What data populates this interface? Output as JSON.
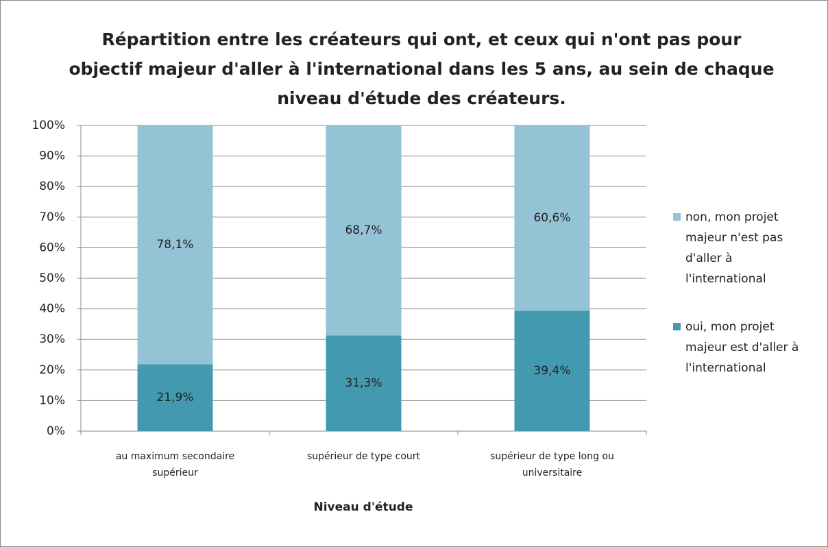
{
  "chart_data": {
    "type": "stacked_bar",
    "title": "Répartition entre les créateurs qui ont, et ceux qui n'ont pas pour objectif majeur d'aller à l'international dans les 5 ans, au sein de chaque niveau d'étude des créateurs.",
    "x_label": "Niveau d'étude",
    "categories": [
      "au maximum secondaire supérieur",
      "supérieur de type court",
      "supérieur de type long ou universitaire"
    ],
    "series": [
      {
        "name": "oui, mon projet majeur est d'aller à l'international",
        "color": "#4399b0",
        "values": [
          21.9,
          31.3,
          39.4
        ],
        "value_labels": [
          "21,9%",
          "31,3%",
          "39,4%"
        ]
      },
      {
        "name": "non, mon projet majeur n'est pas d'aller à l'international",
        "color": "#93c3d5",
        "values": [
          78.1,
          68.7,
          60.6
        ],
        "value_labels": [
          "78,1%",
          "68,7%",
          "60,6%"
        ]
      }
    ],
    "ylim": [
      0,
      100
    ],
    "yticks": [
      {
        "value": 0,
        "label": "0%"
      },
      {
        "value": 10,
        "label": "10%"
      },
      {
        "value": 20,
        "label": "20%"
      },
      {
        "value": 30,
        "label": "30%"
      },
      {
        "value": 40,
        "label": "40%"
      },
      {
        "value": 50,
        "label": "50%"
      },
      {
        "value": 60,
        "label": "60%"
      },
      {
        "value": 70,
        "label": "70%"
      },
      {
        "value": 80,
        "label": "80%"
      },
      {
        "value": 90,
        "label": "90%"
      },
      {
        "value": 100,
        "label": "100%"
      }
    ],
    "grid": true,
    "legend": "right"
  }
}
